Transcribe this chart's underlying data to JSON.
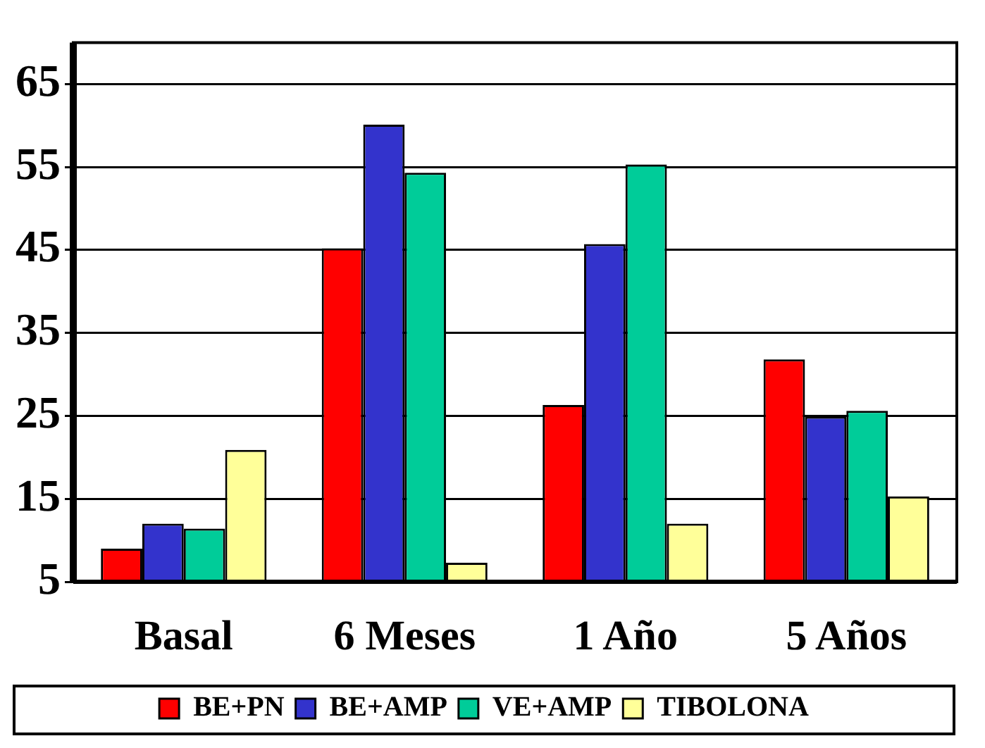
{
  "chart_data": {
    "type": "bar",
    "categories": [
      "Basal",
      "6 Meses",
      "1 Año",
      "5 Años"
    ],
    "series": [
      {
        "name": "BE+PN",
        "color": "#ff0000",
        "values": [
          9.0,
          45.2,
          26.3,
          31.8
        ]
      },
      {
        "name": "BE+AMP",
        "color": "#3333cc",
        "values": [
          12.0,
          60.1,
          45.7,
          24.9
        ]
      },
      {
        "name": "VE+AMP",
        "color": "#00cc99",
        "values": [
          11.4,
          54.3,
          55.3,
          25.6
        ]
      },
      {
        "name": "TIBOLONA",
        "color": "#ffff99",
        "values": [
          20.9,
          7.3,
          12.0,
          15.3
        ]
      }
    ],
    "ylim": [
      5,
      70
    ],
    "yticks": [
      5,
      15,
      25,
      35,
      45,
      55,
      65
    ],
    "grid": "y",
    "legend": "bottom"
  }
}
